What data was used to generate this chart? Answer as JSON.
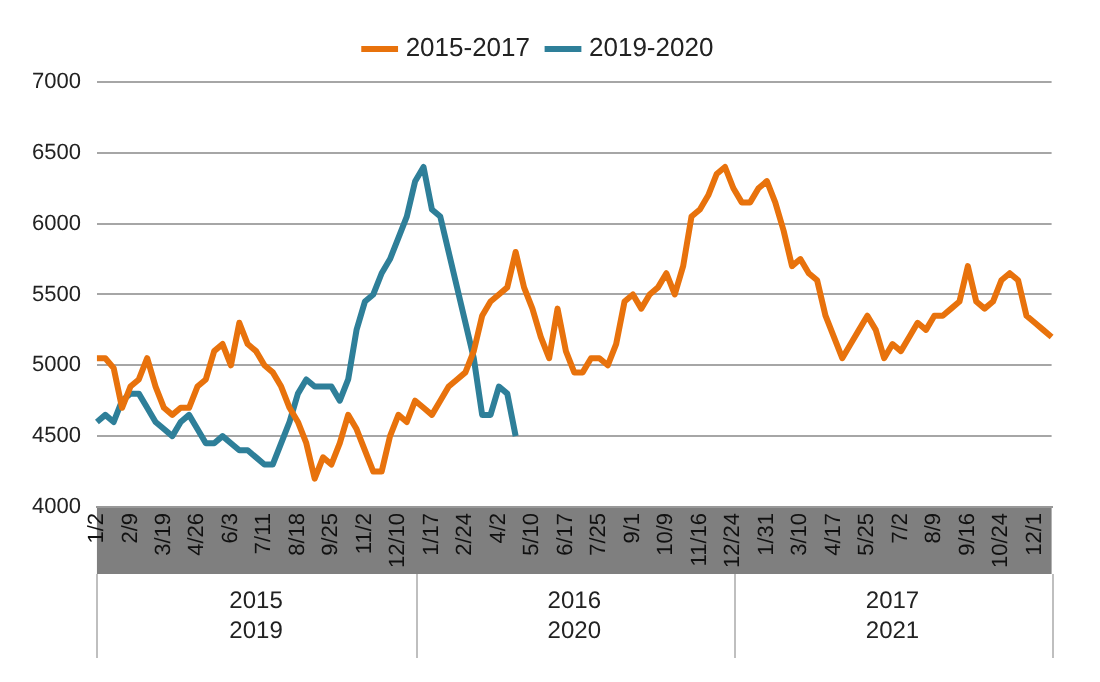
{
  "chart_data": {
    "type": "line",
    "categories": [
      "1/2",
      null,
      null,
      null,
      "2/9",
      null,
      null,
      null,
      "3/19",
      null,
      null,
      null,
      "4/26",
      null,
      null,
      null,
      "6/3",
      null,
      null,
      null,
      "7/11",
      null,
      null,
      null,
      "8/18",
      null,
      null,
      null,
      "9/25",
      null,
      null,
      null,
      "11/2",
      null,
      null,
      null,
      "12/10",
      null,
      null,
      null,
      "1/17",
      null,
      null,
      null,
      "2/24",
      null,
      null,
      null,
      "4/2",
      null,
      null,
      null,
      "5/10",
      null,
      null,
      null,
      "6/17",
      null,
      null,
      null,
      "7/25",
      null,
      null,
      null,
      "9/1",
      null,
      null,
      null,
      "10/9",
      null,
      null,
      null,
      "11/16",
      null,
      null,
      null,
      "12/24",
      null,
      null,
      null,
      "1/31",
      null,
      null,
      null,
      "3/10",
      null,
      null,
      null,
      "4/17",
      null,
      null,
      null,
      "5/25",
      null,
      null,
      null,
      "7/2",
      null,
      null,
      null,
      "8/9",
      null,
      null,
      null,
      "9/16",
      null,
      null,
      null,
      "10/24",
      null,
      null,
      null,
      "12/1",
      null,
      null
    ],
    "series": [
      {
        "name": "2015-2017",
        "color": "#e8720c",
        "values": [
          5050,
          5050,
          4980,
          4700,
          4850,
          4900,
          5050,
          4850,
          4700,
          4650,
          4700,
          4700,
          4850,
          4900,
          5100,
          5150,
          5000,
          5300,
          5150,
          5100,
          5000,
          4950,
          4850,
          4700,
          4600,
          4450,
          4200,
          4350,
          4300,
          4450,
          4650,
          4550,
          4400,
          4250,
          4250,
          4500,
          4650,
          4600,
          4750,
          4700,
          4650,
          4750,
          4850,
          4900,
          4950,
          5100,
          5350,
          5450,
          5500,
          5550,
          5800,
          5550,
          5400,
          5200,
          5050,
          5400,
          5100,
          4950,
          4950,
          5050,
          5050,
          5000,
          5150,
          5450,
          5500,
          5400,
          5500,
          5550,
          5650,
          5500,
          5700,
          6050,
          6100,
          6200,
          6350,
          6400,
          6250,
          6150,
          6150,
          6250,
          6300,
          6150,
          5950,
          5700,
          5750,
          5650,
          5600,
          5350,
          5200,
          5050,
          5150,
          5250,
          5350,
          5250,
          5050,
          5150,
          5100,
          5200,
          5300,
          5250,
          5350,
          5350,
          5400,
          5450,
          5700,
          5450,
          5400,
          5450,
          5600,
          5650,
          5600,
          5350,
          5300,
          5250,
          5200
        ]
      },
      {
        "name": "2019-2020",
        "color": "#2e7f99",
        "values": [
          4600,
          4650,
          4600,
          4750,
          4800,
          4800,
          4700,
          4600,
          4550,
          4500,
          4600,
          4650,
          4550,
          4450,
          4450,
          4500,
          4450,
          4400,
          4400,
          4350,
          4300,
          4300,
          4450,
          4600,
          4800,
          4900,
          4850,
          4850,
          4850,
          4750,
          4900,
          5250,
          5450,
          5500,
          5650,
          5750,
          5900,
          6050,
          6300,
          6400,
          6100,
          6050,
          5800,
          5550,
          5300,
          5050,
          4650,
          4650,
          4850,
          4800,
          4500,
          null,
          null,
          null,
          null,
          null,
          null,
          null,
          null,
          null,
          null,
          null,
          null,
          null,
          null,
          null,
          null,
          null,
          null,
          null,
          null,
          null,
          null,
          null,
          null,
          null,
          null,
          null,
          null,
          null,
          null,
          null,
          null,
          null,
          null,
          null,
          null,
          null,
          null,
          null,
          null,
          null,
          null,
          null,
          null,
          null,
          null,
          null,
          null,
          null,
          null,
          null,
          null,
          null,
          null,
          null,
          null,
          null,
          null,
          null,
          null,
          null,
          null,
          null,
          null
        ]
      }
    ],
    "ylim": [
      4000,
      7000
    ],
    "yticks": [
      4000,
      4500,
      5000,
      5500,
      6000,
      6500,
      7000
    ],
    "grid": "y",
    "legend": "top",
    "line_style": "solid",
    "marker": "none",
    "annotations": [
      "2015\n2019",
      "2016\n2020",
      "2017\n2021"
    ]
  }
}
